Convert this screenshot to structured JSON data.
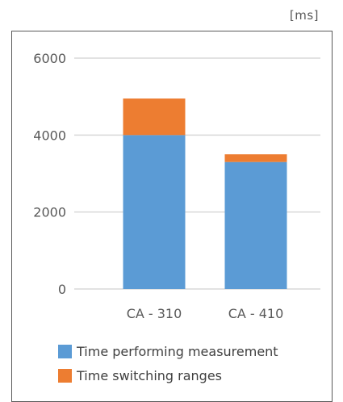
{
  "chart_data": {
    "type": "bar",
    "stacked": true,
    "unit": "[ms]",
    "categories": [
      "CA - 310",
      "CA - 410"
    ],
    "series": [
      {
        "name": "Time performing measurement",
        "values": [
          4000,
          3300
        ],
        "color": "#5B9BD5"
      },
      {
        "name": "Time switching ranges",
        "values": [
          950,
          200
        ],
        "color": "#ED7D31"
      }
    ],
    "yticks": [
      0,
      2000,
      4000,
      6000
    ],
    "ylim": [
      0,
      6000
    ],
    "grid": true,
    "legend_position": "bottom",
    "title": "",
    "xlabel": "",
    "ylabel": ""
  }
}
